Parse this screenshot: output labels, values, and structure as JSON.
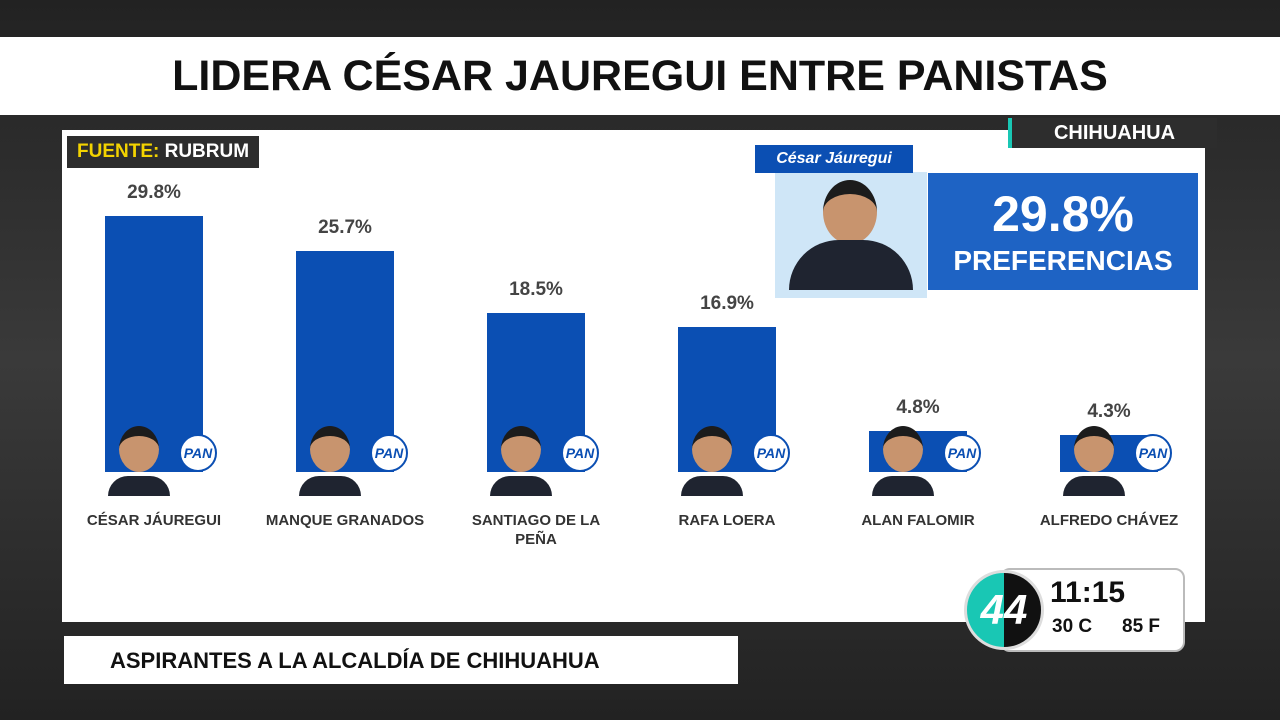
{
  "chart_data": {
    "type": "bar",
    "title": "LIDERA CÉSAR JAUREGUI ENTRE PANISTAS",
    "categories": [
      "CÉSAR JÁUREGUI",
      "MANQUE GRANADOS",
      "SANTIAGO DE LA PEÑA",
      "RAFA LOERA",
      "ALAN FALOMIR",
      "ALFREDO CHÁVEZ"
    ],
    "values": [
      29.8,
      25.7,
      18.5,
      16.9,
      4.8,
      4.3
    ],
    "value_labels": [
      "29.8%",
      "25.7%",
      "18.5%",
      "16.9%",
      "4.8%",
      "4.3%"
    ],
    "color": "#0b4fb3",
    "party_logo": "PAN"
  },
  "source": {
    "label": "FUENTE:",
    "name": "RUBRUM"
  },
  "region": "CHIHUAHUA",
  "highlight": {
    "name": "César Jáuregui",
    "value_label": "29.8%",
    "caption": "PREFERENCIAS"
  },
  "lower_third": "ASPIRANTES A LA ALCALDÍA DE CHIHUAHUA",
  "clock": {
    "logo": "44",
    "time": "11:15",
    "temp_c": "30 C",
    "temp_f": "85 F"
  }
}
